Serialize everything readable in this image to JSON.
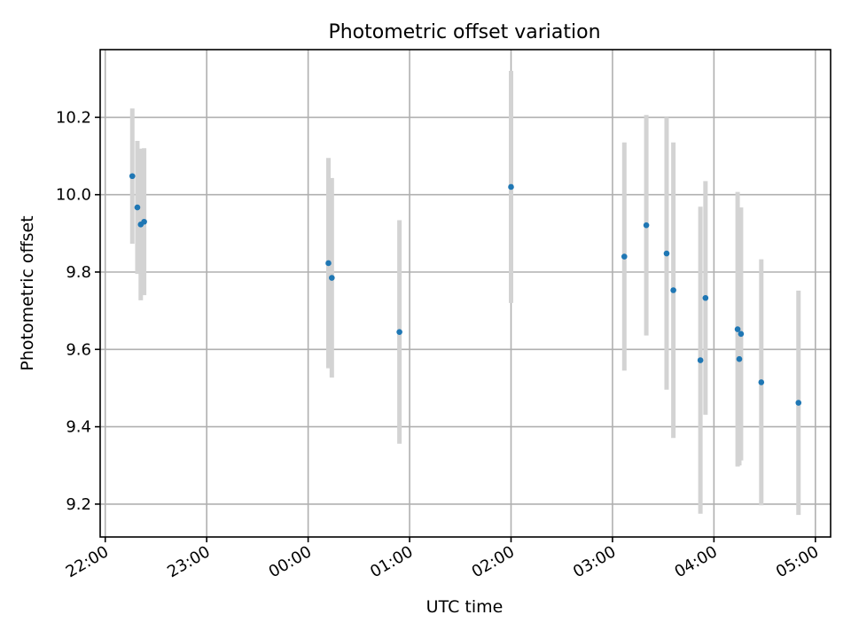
{
  "chart_data": {
    "type": "scatter",
    "title": "Photometric offset variation",
    "xlabel": "UTC time",
    "ylabel": "Photometric offset",
    "xlim": [
      "21:57",
      "05:09"
    ],
    "ylim": [
      9.115,
      10.375
    ],
    "x_ticks": [
      "22:00",
      "23:00",
      "00:00",
      "01:00",
      "02:00",
      "03:00",
      "04:00",
      "05:00"
    ],
    "y_ticks": [
      9.2,
      9.4,
      9.6,
      9.8,
      10.0,
      10.2
    ],
    "grid": true,
    "marker_color": "#1f77b4",
    "errorbar_color": "#d3d3d3",
    "points": [
      {
        "time": "22:16",
        "y": 10.048,
        "yerr": 0.175
      },
      {
        "time": "22:19",
        "y": 9.967,
        "yerr": 0.172
      },
      {
        "time": "22:21",
        "y": 9.923,
        "yerr": 0.196
      },
      {
        "time": "22:23",
        "y": 9.93,
        "yerr": 0.19
      },
      {
        "time": "00:12",
        "y": 9.823,
        "yerr": 0.272
      },
      {
        "time": "00:14",
        "y": 9.785,
        "yerr": 0.258
      },
      {
        "time": "00:54",
        "y": 9.645,
        "yerr": 0.289
      },
      {
        "time": "02:00",
        "y": 10.02,
        "yerr": 0.3
      },
      {
        "time": "03:07",
        "y": 9.84,
        "yerr": 0.295
      },
      {
        "time": "03:20",
        "y": 9.921,
        "yerr": 0.285
      },
      {
        "time": "03:32",
        "y": 9.848,
        "yerr": 0.352
      },
      {
        "time": "03:36",
        "y": 9.753,
        "yerr": 0.382
      },
      {
        "time": "03:52",
        "y": 9.572,
        "yerr": 0.397
      },
      {
        "time": "03:55",
        "y": 9.733,
        "yerr": 0.302
      },
      {
        "time": "04:14",
        "y": 9.652,
        "yerr": 0.355
      },
      {
        "time": "04:15",
        "y": 9.575,
        "yerr": 0.275
      },
      {
        "time": "04:16",
        "y": 9.64,
        "yerr": 0.327
      },
      {
        "time": "04:28",
        "y": 9.515,
        "yerr": 0.318
      },
      {
        "time": "04:50",
        "y": 9.462,
        "yerr": 0.29
      }
    ]
  }
}
